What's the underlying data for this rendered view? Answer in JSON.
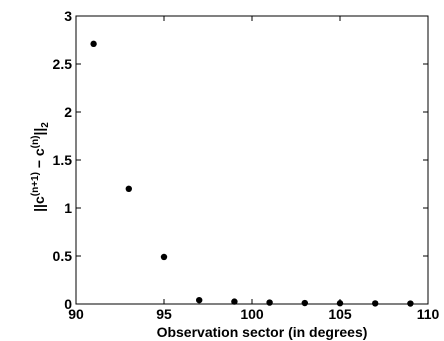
{
  "chart_data": {
    "type": "scatter",
    "title": "",
    "xlabel": "Observation sector (in degrees)",
    "ylabel_parts": {
      "open": "||c",
      "sup1": "(n+1)",
      "minus": " − c",
      "sup2": "(n)",
      "close": "||",
      "sub": "2"
    },
    "xlim": [
      90,
      110
    ],
    "ylim": [
      0,
      3
    ],
    "x_ticks": [
      90,
      95,
      100,
      105,
      110
    ],
    "x_tick_labels": [
      "90",
      "95",
      "100",
      "105",
      "110"
    ],
    "y_ticks": [
      0,
      0.5,
      1,
      1.5,
      2,
      2.5,
      3
    ],
    "y_tick_labels": [
      "0",
      "0.5",
      "1",
      "1.5",
      "2",
      "2.5",
      "3"
    ],
    "grid": false,
    "marker_color": "#000000",
    "series": [
      {
        "x": [
          91,
          93,
          95,
          97,
          99,
          101,
          103,
          105,
          107,
          109
        ],
        "y": [
          2.71,
          1.2,
          0.49,
          0.04,
          0.025,
          0.015,
          0.01,
          0.008,
          0.006,
          0.005
        ]
      }
    ]
  }
}
